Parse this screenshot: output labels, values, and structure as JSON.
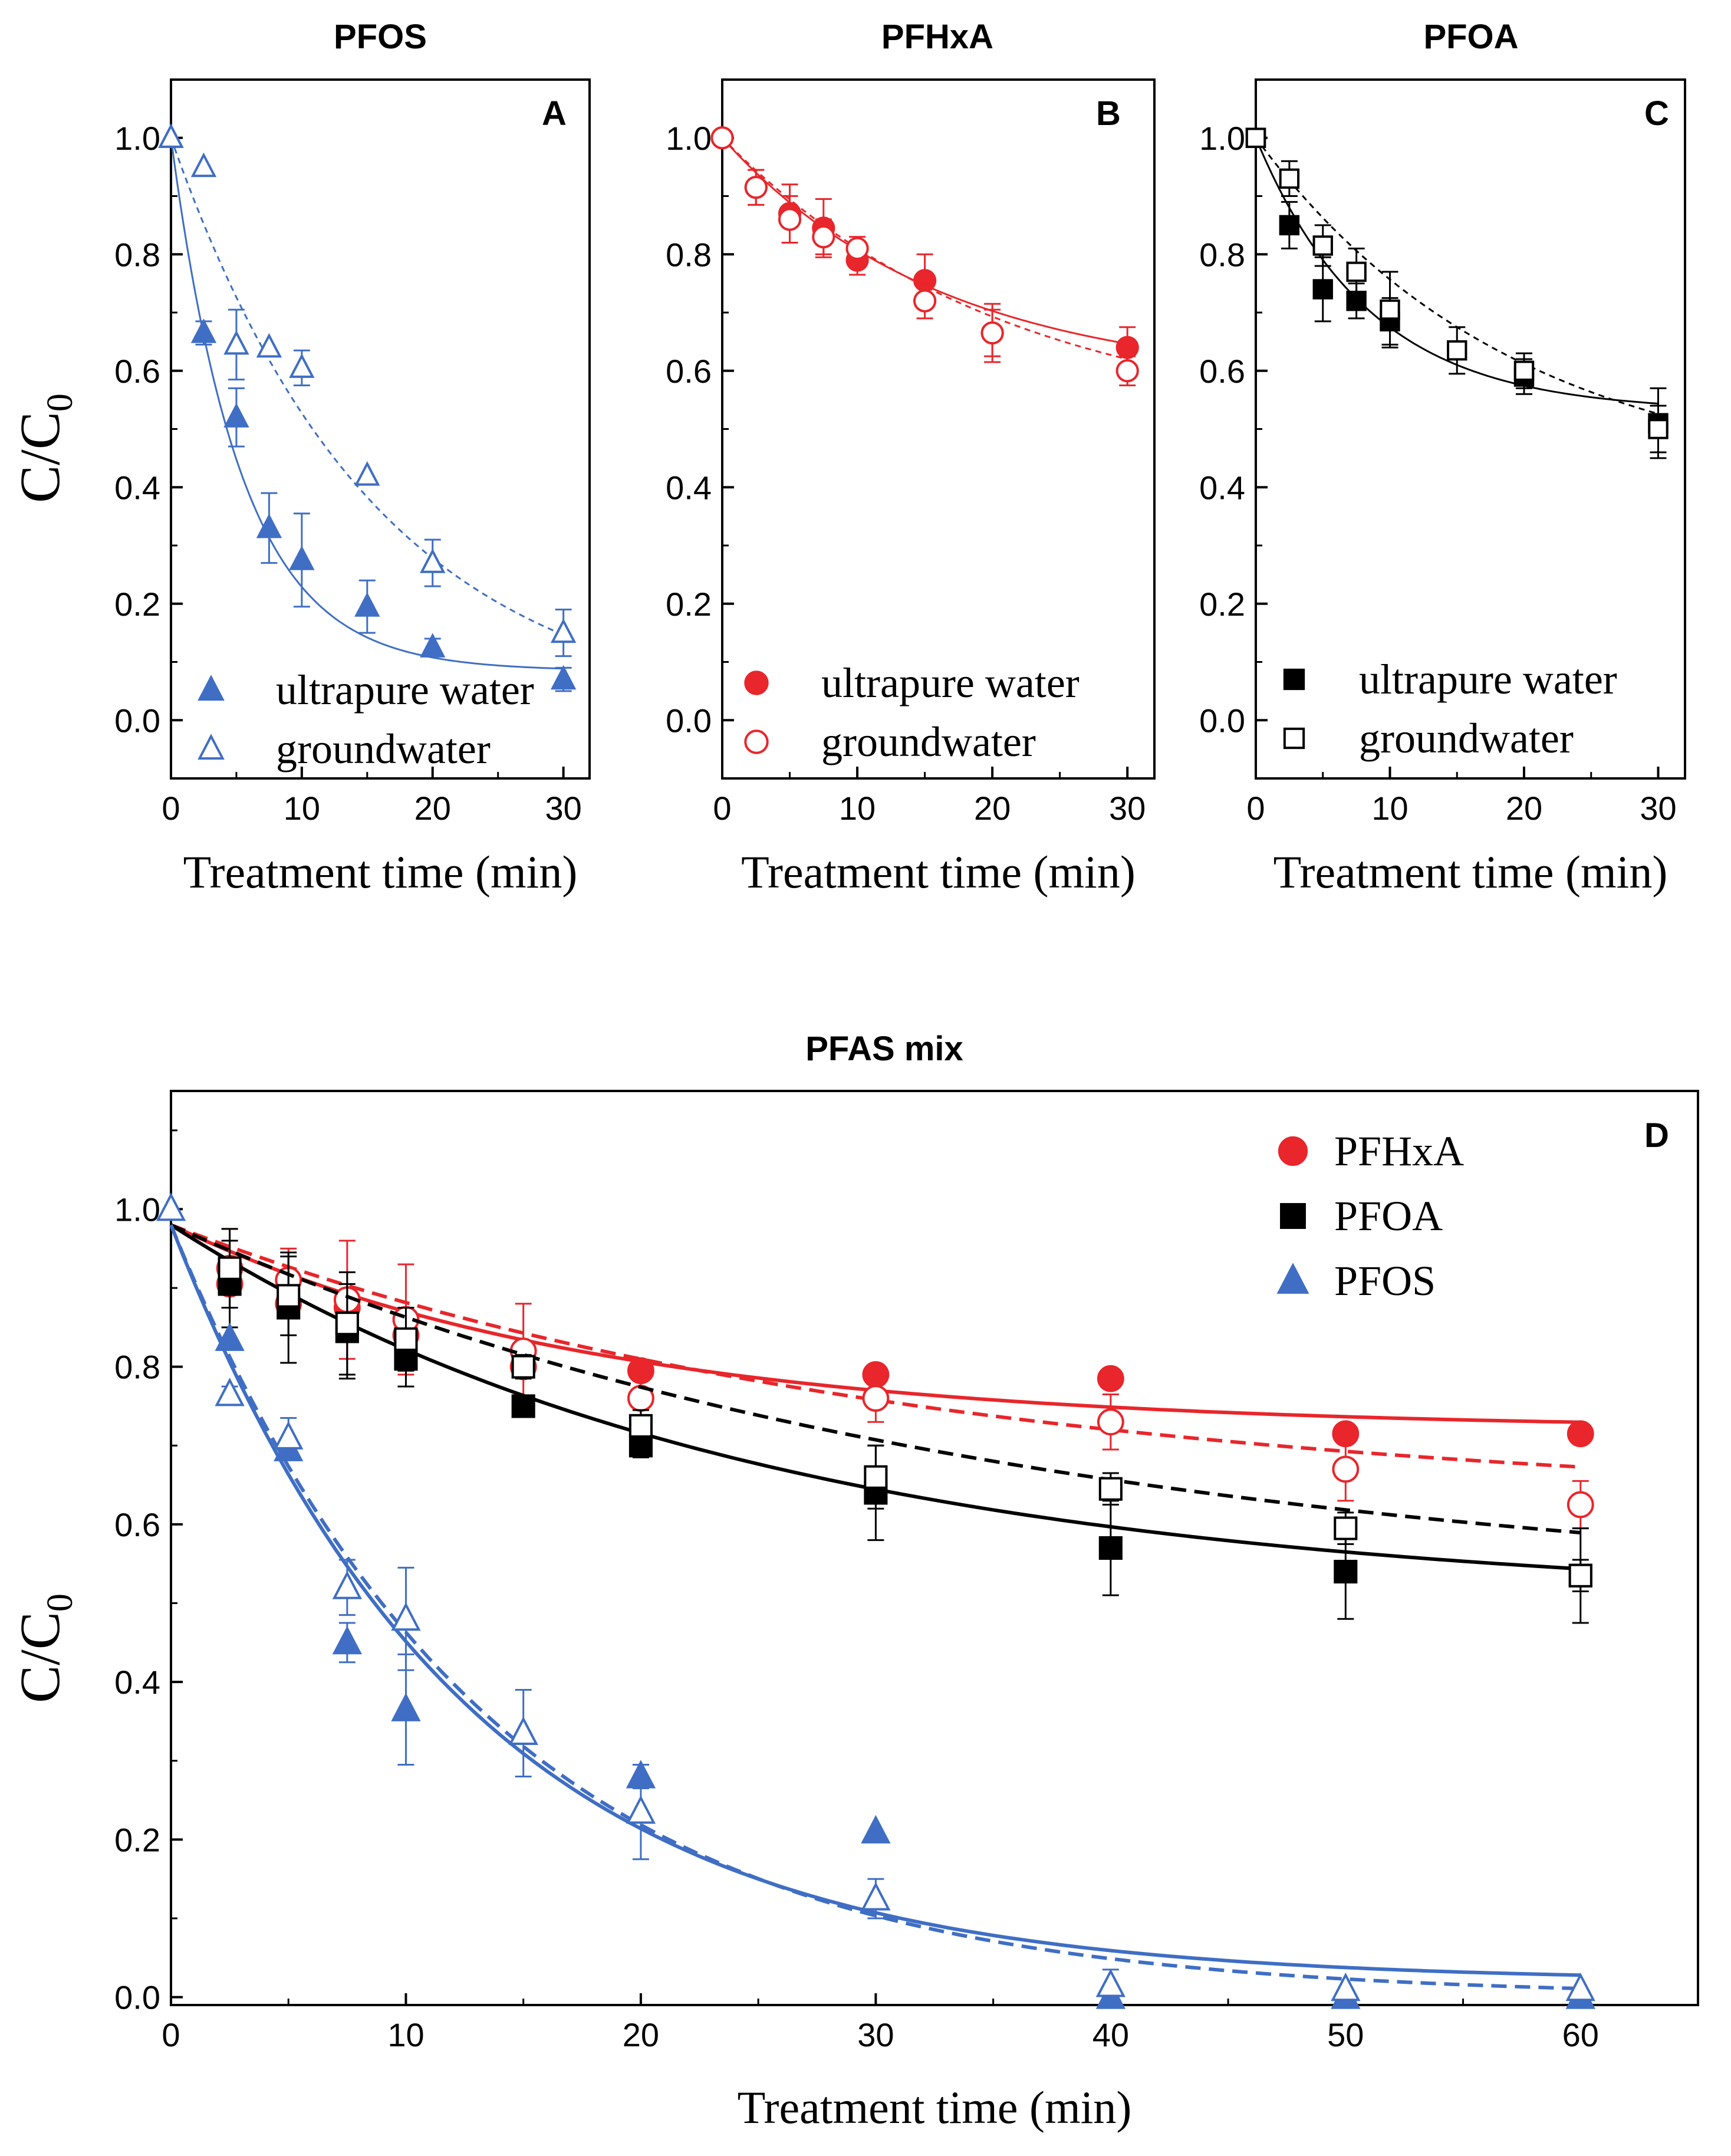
{
  "colors": {
    "PFOS": "#3f6ec4",
    "PFHxA": "#e8262b",
    "PFOA": "#000000",
    "frame": "#000000"
  },
  "chart_data": [
    {
      "panel": "A",
      "type": "scatter",
      "title": "PFOS",
      "xlabel": "Treatment time (min)",
      "ylabel_main": "C/C",
      "ylabel_sub": "0",
      "xlim": [
        0,
        32
      ],
      "ylim": [
        -0.1,
        1.1
      ],
      "xticks": [
        0,
        10,
        20,
        30
      ],
      "yticks": [
        0.0,
        0.2,
        0.4,
        0.6,
        0.8,
        1.0
      ],
      "series": [
        {
          "name": "ultrapure water",
          "compound": "PFOS",
          "marker": "triangle",
          "filled": true,
          "dashed": false,
          "x": [
            0,
            2.5,
            5,
            7.5,
            10,
            15,
            20,
            30
          ],
          "y": [
            1.0,
            0.665,
            0.52,
            0.33,
            0.275,
            0.195,
            0.125,
            0.07
          ],
          "err": [
            0,
            0.02,
            0.05,
            0.06,
            0.08,
            0.045,
            0.015,
            0.02
          ],
          "fit": {
            "a": 0.085,
            "b": 0.915,
            "k": 0.185
          }
        },
        {
          "name": "groundwater",
          "compound": "PFOS",
          "marker": "triangle",
          "filled": false,
          "dashed": true,
          "x": [
            0,
            2.5,
            5,
            7.5,
            10,
            15,
            20,
            30
          ],
          "y": [
            1.0,
            0.95,
            0.645,
            0.64,
            0.605,
            0.42,
            0.27,
            0.15
          ],
          "err": [
            0,
            0,
            0.06,
            0,
            0.03,
            0,
            0.04,
            0.04
          ],
          "fit": {
            "a": 0.0,
            "b": 1.0,
            "k": 0.064
          }
        }
      ]
    },
    {
      "panel": "B",
      "type": "scatter",
      "title": "PFHxA",
      "xlabel": "Treatment time (min)",
      "xlim": [
        0,
        32
      ],
      "ylim": [
        -0.1,
        1.1
      ],
      "xticks": [
        0,
        10,
        20,
        30
      ],
      "yticks": [
        0.0,
        0.2,
        0.4,
        0.6,
        0.8,
        1.0
      ],
      "series": [
        {
          "name": "ultrapure water",
          "compound": "PFHxA",
          "marker": "circle",
          "filled": true,
          "dashed": false,
          "x": [
            0,
            2.5,
            5,
            7.5,
            10,
            15,
            20,
            30
          ],
          "y": [
            1.0,
            0.915,
            0.87,
            0.845,
            0.79,
            0.755,
            0.665,
            0.64
          ],
          "err": [
            0,
            0.03,
            0.05,
            0.05,
            0.025,
            0.045,
            0.04,
            0.035
          ],
          "fit": {
            "a": 0.58,
            "b": 0.42,
            "k": 0.0615
          }
        },
        {
          "name": "groundwater",
          "compound": "PFHxA",
          "marker": "circle",
          "filled": false,
          "dashed": true,
          "x": [
            0,
            2.5,
            5,
            7.5,
            10,
            15,
            20,
            30
          ],
          "y": [
            1.0,
            0.915,
            0.86,
            0.83,
            0.81,
            0.72,
            0.665,
            0.6
          ],
          "err": [
            0,
            0.03,
            0.04,
            0.03,
            0.02,
            0.03,
            0.05,
            0.025
          ],
          "fit": {
            "a": 0.5,
            "b": 0.5,
            "k": 0.0476
          }
        }
      ]
    },
    {
      "panel": "C",
      "type": "scatter",
      "title": "PFOA",
      "xlabel": "Treatment time (min)",
      "xlim": [
        0,
        32
      ],
      "ylim": [
        -0.1,
        1.1
      ],
      "xticks": [
        0,
        10,
        20,
        30
      ],
      "yticks": [
        0.0,
        0.2,
        0.4,
        0.6,
        0.8,
        1.0
      ],
      "series": [
        {
          "name": "ultrapure water",
          "compound": "PFOA",
          "marker": "square",
          "filled": true,
          "dashed": false,
          "x": [
            0,
            2.5,
            5,
            7.5,
            10,
            20,
            30
          ],
          "y": [
            1.0,
            0.85,
            0.74,
            0.72,
            0.685,
            0.59,
            0.51
          ],
          "err": [
            0,
            0.04,
            0.055,
            0.03,
            0.04,
            0.03,
            0.06
          ],
          "fit": {
            "a": 0.53,
            "b": 0.47,
            "k": 0.118
          }
        },
        {
          "name": "groundwater",
          "compound": "PFOA",
          "marker": "square",
          "filled": false,
          "dashed": true,
          "x": [
            0,
            2.5,
            5,
            7.5,
            10,
            15,
            20,
            30
          ],
          "y": [
            1.0,
            0.93,
            0.815,
            0.77,
            0.705,
            0.635,
            0.6,
            0.5
          ],
          "err": [
            0,
            0.03,
            0.035,
            0.04,
            0.065,
            0.04,
            0.03,
            0.04
          ],
          "fit": {
            "a": 0.4,
            "b": 0.6,
            "k": 0.052
          }
        }
      ]
    },
    {
      "panel": "D",
      "type": "scatter",
      "title": "PFAS mix",
      "xlabel": "Treatment time (min)",
      "ylabel_main": "C/C",
      "ylabel_sub": "0",
      "xlim": [
        0,
        65
      ],
      "ylim": [
        -0.01,
        1.15
      ],
      "xticks": [
        0,
        10,
        20,
        30,
        40,
        50,
        60
      ],
      "yticks": [
        0.0,
        0.2,
        0.4,
        0.6,
        0.8,
        1.0
      ],
      "legend": [
        "PFHxA",
        "PFOA",
        "PFOS"
      ],
      "series": [
        {
          "name": "PFHxA",
          "compound": "PFHxA",
          "marker": "circle",
          "filled": true,
          "dashed": false,
          "x": [
            2.5,
            5,
            7.5,
            10,
            15,
            20,
            30,
            40,
            50,
            60
          ],
          "y": [
            0.905,
            0.88,
            0.875,
            0.84,
            0.8,
            0.795,
            0.79,
            0.785,
            0.715,
            0.715
          ],
          "err": [
            0,
            0,
            0,
            0,
            0,
            0,
            0,
            0,
            0,
            0
          ],
          "fit": {
            "a": 0.72,
            "b": 0.26,
            "k": 0.055
          }
        },
        {
          "name": "PFHxA (open)",
          "compound": "PFHxA",
          "marker": "circle",
          "filled": false,
          "dashed": true,
          "x": [
            2.5,
            5,
            7.5,
            10,
            15,
            20,
            30,
            40,
            50,
            60
          ],
          "y": [
            0.925,
            0.91,
            0.885,
            0.86,
            0.82,
            0.76,
            0.76,
            0.73,
            0.67,
            0.625
          ],
          "err": [
            0.05,
            0.04,
            0.075,
            0.07,
            0.06,
            0.03,
            0.03,
            0.035,
            0.04,
            0.03
          ],
          "fit": {
            "a": 0.62,
            "b": 0.36,
            "k": 0.032
          }
        },
        {
          "name": "PFOA",
          "compound": "PFOA",
          "marker": "square",
          "filled": true,
          "dashed": false,
          "x": [
            2.5,
            5,
            7.5,
            10,
            15,
            20,
            30,
            40,
            50,
            60
          ],
          "y": [
            0.905,
            0.875,
            0.845,
            0.81,
            0.75,
            0.7,
            0.64,
            0.57,
            0.54,
            0.535
          ],
          "err": [
            0.055,
            0.07,
            0.06,
            0.035,
            0.01,
            0.015,
            0.06,
            0.06,
            0.06,
            0.06
          ],
          "fit": {
            "a": 0.5,
            "b": 0.48,
            "k": 0.04
          }
        },
        {
          "name": "PFOA (open)",
          "compound": "PFOA",
          "marker": "square",
          "filled": false,
          "dashed": true,
          "x": [
            2.5,
            5,
            7.5,
            10,
            15,
            20,
            30,
            40,
            50,
            60
          ],
          "y": [
            0.925,
            0.89,
            0.855,
            0.835,
            0.8,
            0.725,
            0.66,
            0.645,
            0.595,
            0.535
          ],
          "err": [
            0.05,
            0.05,
            0.065,
            0.04,
            0.015,
            0.02,
            0.04,
            0.02,
            0.02,
            0.02
          ],
          "fit": {
            "a": 0.5,
            "b": 0.48,
            "k": 0.028
          }
        },
        {
          "name": "PFOS",
          "compound": "PFOS",
          "marker": "triangle",
          "filled": true,
          "dashed": false,
          "x": [
            2.5,
            5,
            7.5,
            10,
            15,
            20,
            30,
            40,
            50,
            60
          ],
          "y": [
            0.835,
            0.695,
            0.45,
            0.365,
            0.335,
            0.28,
            0.21,
            0.0,
            0.0,
            0.0
          ],
          "err": [
            0,
            0.01,
            0.025,
            0.07,
            0,
            0.015,
            0,
            0,
            0,
            0
          ],
          "fit": {
            "a": 0.02,
            "b": 0.96,
            "k": 0.08
          }
        },
        {
          "name": "PFOS (open)",
          "compound": "PFOS",
          "marker": "triangle",
          "filled": false,
          "dashed": true,
          "x": [
            0,
            2.5,
            5,
            7.5,
            10,
            15,
            20,
            30,
            40,
            50,
            60
          ],
          "y": [
            1.0,
            0.765,
            0.71,
            0.52,
            0.48,
            0.335,
            0.235,
            0.125,
            0.015,
            0.01,
            0.01
          ],
          "err": [
            0,
            0.01,
            0.025,
            0.035,
            0.065,
            0.055,
            0.06,
            0.025,
            0.02,
            0,
            0
          ],
          "fit": {
            "a": 0.0,
            "b": 0.98,
            "k": 0.075
          }
        }
      ]
    }
  ]
}
